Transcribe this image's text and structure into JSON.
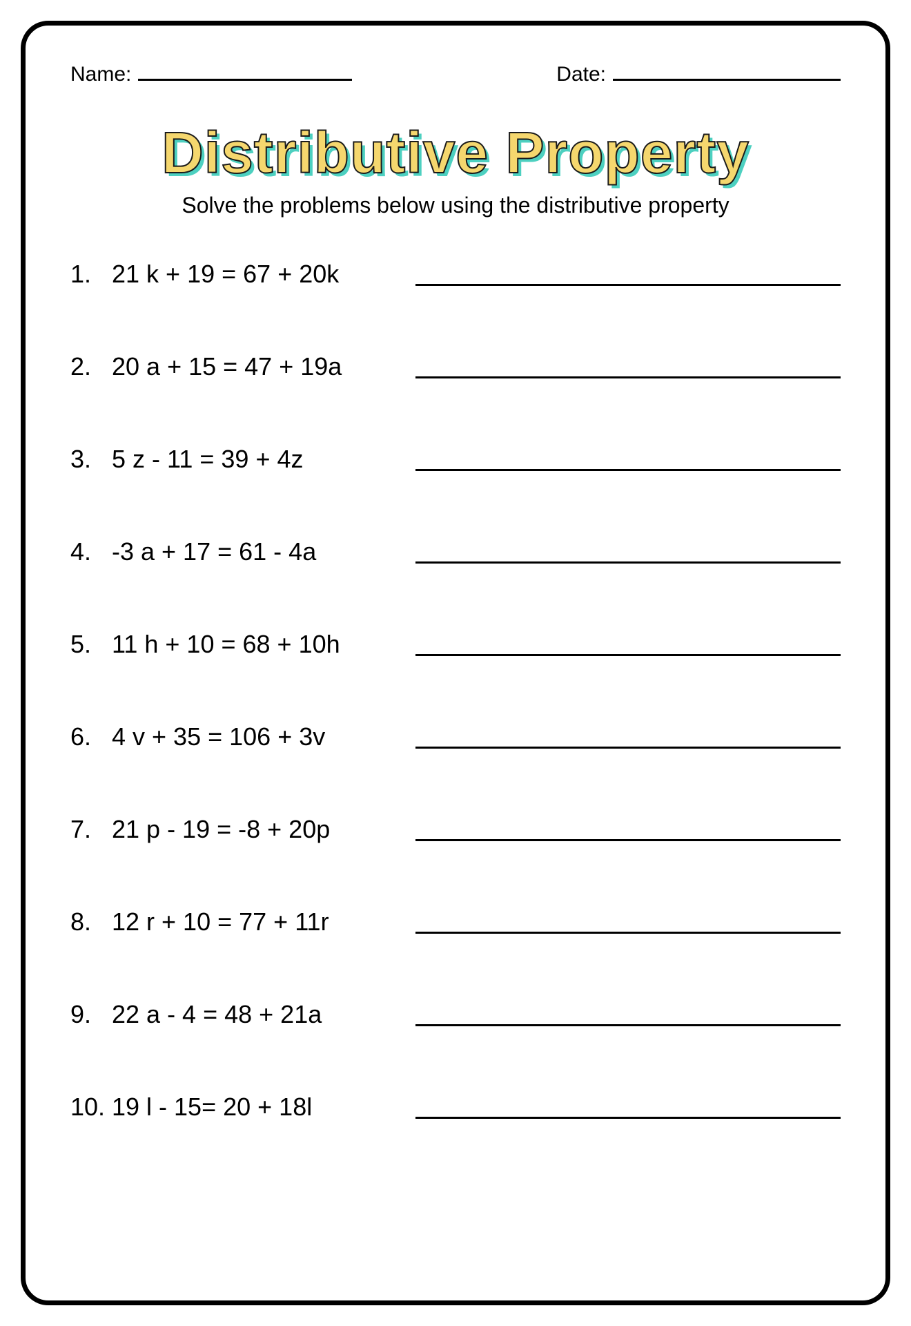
{
  "header": {
    "name_label": "Name:",
    "date_label": "Date:"
  },
  "title": "Distributive Property",
  "subtitle": "Solve the problems below using the distributive property",
  "title_styling": {
    "fill_color": "#f5d76e",
    "stroke_color": "#1a1a1a",
    "shadow_color": "#4dd0c0",
    "font_size": 84,
    "font_weight": 900
  },
  "body_font_size": 36,
  "header_font_size": 30,
  "subtitle_font_size": 32,
  "border": {
    "width": 7,
    "radius": 40,
    "color": "#000000"
  },
  "underline_width": 3,
  "problems": [
    {
      "num": "1.",
      "text": "21 k + 19 = 67 + 20k"
    },
    {
      "num": "2.",
      "text": "20 a + 15 = 47 + 19a"
    },
    {
      "num": "3.",
      "text": "5 z - 11  = 39 + 4z"
    },
    {
      "num": "4.",
      "text": "-3 a + 17  = 61 - 4a"
    },
    {
      "num": "5.",
      "text": "11 h + 10 = 68 + 10h"
    },
    {
      "num": "6.",
      "text": "4 v + 35   = 106 + 3v"
    },
    {
      "num": "7.",
      "text": "21 p - 19  = -8 + 20p"
    },
    {
      "num": "8.",
      "text": "12 r + 10  = 77 + 11r"
    },
    {
      "num": "9.",
      "text": "22 a - 4 = 48 + 21a"
    },
    {
      "num": "10.",
      "text": "19 l - 15= 20 + 18l"
    }
  ]
}
